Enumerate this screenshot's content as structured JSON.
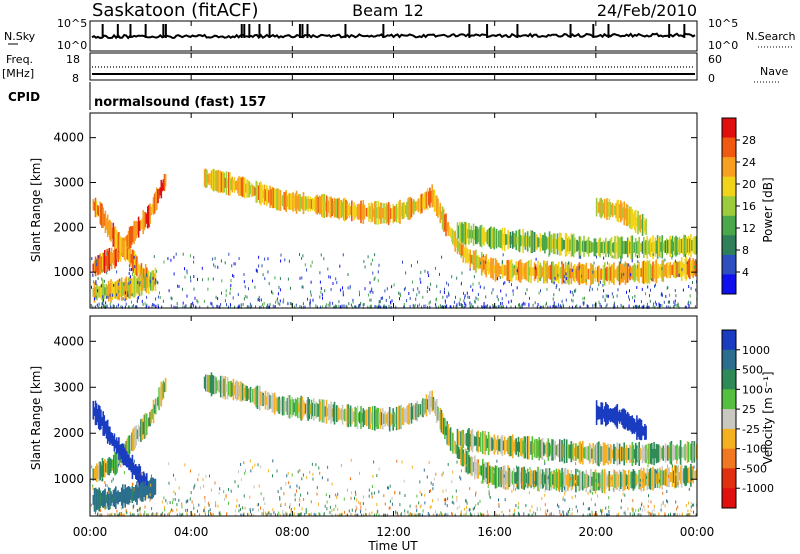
{
  "header": {
    "station": "Saskatoon (fitACF)",
    "beam": "Beam 12",
    "date": "24/Feb/2010"
  },
  "nsky_panel": {
    "left_label": "N.Sky",
    "right_label": "N.Search",
    "left_ticks": [
      "10^5",
      "10^0"
    ],
    "right_ticks": [
      "10^5",
      "10^0"
    ],
    "spike_hours": [
      0.5,
      1.1,
      1.6,
      2.2,
      2.9,
      3.0,
      6.0,
      6.1,
      6.3,
      6.7,
      7.1,
      8.3,
      8.4,
      8.6,
      10.1,
      11.6,
      15.0,
      15.7,
      16.9,
      19.0,
      19.9,
      20.5,
      22.9,
      23.5
    ]
  },
  "freq_panel": {
    "left_label_1": "Freq.",
    "left_label_2": "[MHz]",
    "right_label": "Nave",
    "left_ticks": [
      "18",
      "8"
    ],
    "right_ticks": [
      "60",
      "0"
    ]
  },
  "cpid_panel": {
    "label": "CPID",
    "value": "normalsound (fast) 157"
  },
  "x_axis": {
    "ticks": [
      "00:00",
      "04:00",
      "08:00",
      "12:00",
      "16:00",
      "20:00",
      "00:00"
    ],
    "label": "Time UT"
  },
  "chart_data": [
    {
      "type": "heatmap",
      "title": "",
      "ylabel": "Slant Range [km]",
      "xlabel": "",
      "x_range_hours": [
        0,
        24
      ],
      "ylim": [
        200,
        4550
      ],
      "y_ticks": [
        "4000",
        "3000",
        "2000",
        "1000"
      ],
      "colorbar": {
        "label": "Power [dB]",
        "ticks": [
          "28",
          "24",
          "20",
          "16",
          "12",
          "8",
          "4"
        ],
        "range": [
          0,
          30
        ],
        "colors": [
          "#1010ee",
          "#2d4fbf",
          "#2e7f5a",
          "#4aa84a",
          "#9ccc3c",
          "#f2d31c",
          "#f7a020",
          "#f05a10",
          "#e01010"
        ]
      },
      "echo_bands": [
        {
          "name": "main F-region echo",
          "points": [
            [
              0.1,
              1100
            ],
            [
              0.6,
              1250
            ],
            [
              1.0,
              1350
            ],
            [
              1.4,
              1650
            ],
            [
              1.8,
              1950
            ],
            [
              2.3,
              2250
            ],
            [
              2.7,
              2750
            ],
            [
              3.0,
              3100
            ]
          ],
          "power": 24
        },
        {
          "name": "descending echo",
          "points": [
            [
              0.1,
              2500
            ],
            [
              0.4,
              2300
            ],
            [
              0.8,
              1900
            ],
            [
              1.2,
              1600
            ],
            [
              1.6,
              1300
            ],
            [
              2.0,
              1000
            ],
            [
              2.3,
              850
            ]
          ],
          "power": 22
        },
        {
          "name": "near-range echo",
          "points": [
            [
              0.1,
              550
            ],
            [
              0.8,
              580
            ],
            [
              1.5,
              650
            ],
            [
              2.2,
              750
            ],
            [
              2.6,
              850
            ]
          ],
          "power": 18
        },
        {
          "name": "late-morning echo",
          "points": [
            [
              4.5,
              3100
            ],
            [
              6.0,
              2900
            ],
            [
              7.5,
              2600
            ],
            [
              9.0,
              2500
            ],
            [
              10.5,
              2350
            ],
            [
              12.0,
              2300
            ],
            [
              13.0,
              2500
            ],
            [
              13.5,
              2700
            ],
            [
              14.0,
              2100
            ],
            [
              14.5,
              1600
            ],
            [
              15.0,
              1300
            ],
            [
              16.0,
              1050
            ],
            [
              18.0,
              1000
            ],
            [
              20.0,
              950
            ],
            [
              22.0,
              1000
            ],
            [
              24.0,
              1100
            ]
          ],
          "power": 20
        },
        {
          "name": "afternoon secondary echo",
          "points": [
            [
              14.5,
              1900
            ],
            [
              16.0,
              1750
            ],
            [
              18.0,
              1650
            ],
            [
              20.0,
              1550
            ],
            [
              22.0,
              1550
            ],
            [
              24.0,
              1600
            ]
          ],
          "power": 14
        },
        {
          "name": "evening high-range echo",
          "points": [
            [
              20.0,
              2450
            ],
            [
              21.0,
              2350
            ],
            [
              21.5,
              2150
            ],
            [
              22.0,
              2000
            ]
          ],
          "power": 18
        }
      ]
    },
    {
      "type": "heatmap",
      "title": "",
      "ylabel": "Slant Range [km]",
      "xlabel": "Time UT",
      "x_range_hours": [
        0,
        24
      ],
      "ylim": [
        200,
        4550
      ],
      "y_ticks": [
        "4000",
        "3000",
        "2000",
        "1000"
      ],
      "colorbar": {
        "label": "Velocity [m s⁻¹]",
        "ticks": [
          "1000",
          "500",
          "100",
          "25",
          "-25",
          "-100",
          "-500",
          "-1000"
        ],
        "colors": [
          "#1a3cc0",
          "#2c6e8e",
          "#2e8b57",
          "#55c040",
          "#c8c8c0",
          "#f4b020",
          "#f07820",
          "#e03010",
          "#e01010"
        ]
      },
      "echo_bands": [
        {
          "name": "main F-region echo",
          "points": [
            [
              0.1,
              1100
            ],
            [
              0.6,
              1250
            ],
            [
              1.0,
              1350
            ],
            [
              1.4,
              1650
            ],
            [
              1.8,
              1950
            ],
            [
              2.3,
              2250
            ],
            [
              2.7,
              2750
            ],
            [
              3.0,
              3100
            ]
          ],
          "velocity": 0
        },
        {
          "name": "descending echo",
          "points": [
            [
              0.1,
              2500
            ],
            [
              0.4,
              2300
            ],
            [
              0.8,
              1900
            ],
            [
              1.2,
              1600
            ],
            [
              1.6,
              1300
            ],
            [
              2.0,
              1000
            ],
            [
              2.3,
              850
            ]
          ],
          "velocity": 800
        },
        {
          "name": "near-range echo",
          "points": [
            [
              0.1,
              550
            ],
            [
              0.8,
              580
            ],
            [
              1.5,
              650
            ],
            [
              2.2,
              750
            ],
            [
              2.6,
              850
            ]
          ],
          "velocity": 150
        },
        {
          "name": "late-morning echo",
          "points": [
            [
              4.5,
              3100
            ],
            [
              6.0,
              2900
            ],
            [
              7.5,
              2600
            ],
            [
              9.0,
              2500
            ],
            [
              10.5,
              2350
            ],
            [
              12.0,
              2300
            ],
            [
              13.0,
              2500
            ],
            [
              13.5,
              2700
            ],
            [
              14.0,
              2100
            ],
            [
              14.5,
              1600
            ],
            [
              15.0,
              1300
            ],
            [
              16.0,
              1050
            ],
            [
              18.0,
              1000
            ],
            [
              20.0,
              950
            ],
            [
              22.0,
              1000
            ],
            [
              24.0,
              1100
            ]
          ],
          "velocity": 0
        },
        {
          "name": "afternoon secondary echo",
          "points": [
            [
              14.5,
              1900
            ],
            [
              16.0,
              1750
            ],
            [
              18.0,
              1650
            ],
            [
              20.0,
              1550
            ],
            [
              22.0,
              1550
            ],
            [
              24.0,
              1600
            ]
          ],
          "velocity": 0
        },
        {
          "name": "evening high-range echo",
          "points": [
            [
              20.0,
              2450
            ],
            [
              21.0,
              2350
            ],
            [
              21.5,
              2150
            ],
            [
              22.0,
              2000
            ]
          ],
          "velocity": 600
        }
      ]
    }
  ]
}
